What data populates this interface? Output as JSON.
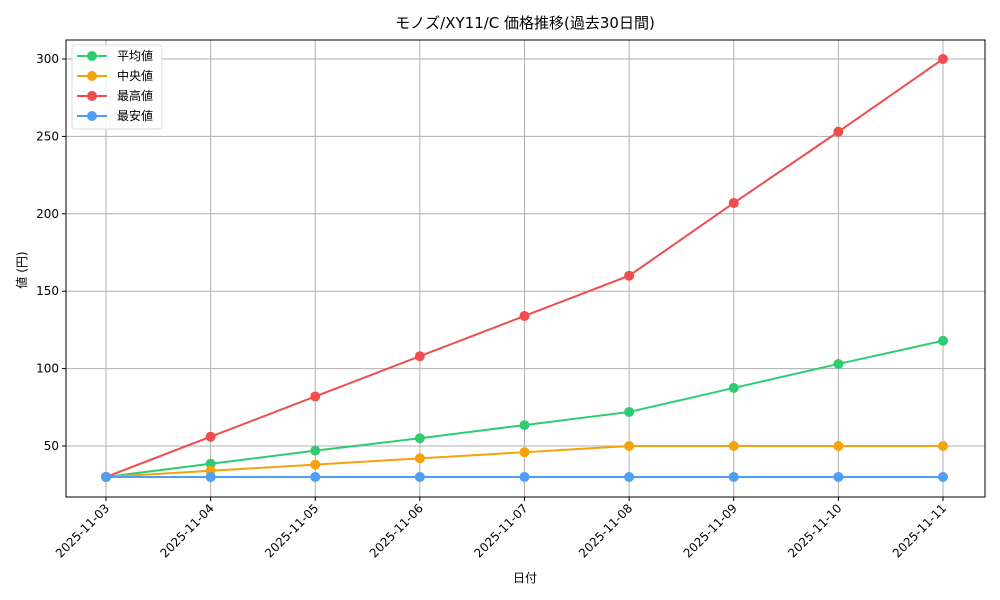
{
  "chart_data": {
    "type": "line",
    "title": "モノズ/XY11/C 価格推移(過去30日間)",
    "xlabel": "日付",
    "ylabel": "値 (円)",
    "categories": [
      "2025-11-03",
      "2025-11-04",
      "2025-11-05",
      "2025-11-06",
      "2025-11-07",
      "2025-11-08",
      "2025-11-09",
      "2025-11-10",
      "2025-11-11"
    ],
    "yticks": [
      50,
      100,
      150,
      200,
      250,
      300
    ],
    "ylim": [
      15,
      314
    ],
    "grid": true,
    "legend_position": "upper left",
    "series": [
      {
        "name": "平均値",
        "color": "#2ecc71",
        "values": [
          30,
          38.5,
          47,
          55,
          63.5,
          72,
          87.5,
          103,
          118
        ]
      },
      {
        "name": "中央値",
        "color": "#f5a30a",
        "values": [
          30,
          34,
          38,
          42,
          46,
          50,
          50,
          50,
          50
        ]
      },
      {
        "name": "最高値",
        "color": "#f24d4d",
        "values": [
          30,
          56,
          82,
          108,
          134,
          160,
          207,
          253,
          300
        ]
      },
      {
        "name": "最安値",
        "color": "#4d9ef5",
        "values": [
          30,
          30,
          30,
          30,
          30,
          30,
          30,
          30,
          30
        ]
      }
    ]
  }
}
